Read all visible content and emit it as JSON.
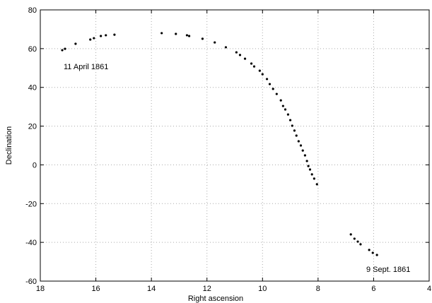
{
  "chart_data": {
    "type": "scatter",
    "xlabel": "Right ascension",
    "ylabel": "Declination",
    "annotations": [
      "11 April 1861",
      "9 Sept. 1861"
    ],
    "x": [
      17.21,
      17.11,
      16.73,
      16.2,
      16.07,
      15.82,
      15.64,
      15.33,
      13.63,
      13.12,
      12.72,
      12.64,
      12.16,
      11.72,
      11.32,
      10.94,
      10.81,
      10.63,
      10.4,
      10.3,
      10.1,
      10.0,
      9.84,
      9.74,
      9.62,
      9.49,
      9.34,
      9.26,
      9.18,
      9.08,
      9.0,
      8.93,
      8.85,
      8.78,
      8.7,
      8.62,
      8.55,
      8.47,
      8.4,
      8.35,
      8.29,
      8.22,
      8.14,
      8.04,
      6.82,
      6.69,
      6.57,
      6.47,
      6.16,
      6.03,
      5.88
    ],
    "values": [
      59.2,
      59.9,
      62.5,
      64.7,
      65.4,
      66.5,
      66.9,
      67.2,
      68.0,
      67.6,
      66.9,
      66.5,
      65.1,
      63.2,
      60.7,
      58.1,
      56.7,
      54.8,
      52.3,
      50.8,
      48.6,
      46.8,
      44.3,
      41.7,
      39.2,
      36.6,
      33.3,
      30.4,
      28.6,
      26.0,
      23.1,
      20.2,
      17.7,
      15.1,
      12.2,
      10.0,
      7.4,
      4.9,
      2.0,
      -0.6,
      -2.4,
      -4.9,
      -7.1,
      -10.0,
      -35.9,
      -38.1,
      -39.6,
      -41.0,
      -43.9,
      -45.4,
      -46.5
    ],
    "color": "#000000",
    "xlim": [
      18,
      4
    ],
    "xticks": [
      18,
      16,
      14,
      12,
      10,
      8,
      6,
      4
    ],
    "ylim": [
      -60,
      80
    ],
    "yticks": [
      -60,
      -40,
      -20,
      0,
      20,
      40,
      60,
      80
    ],
    "grid": true
  }
}
